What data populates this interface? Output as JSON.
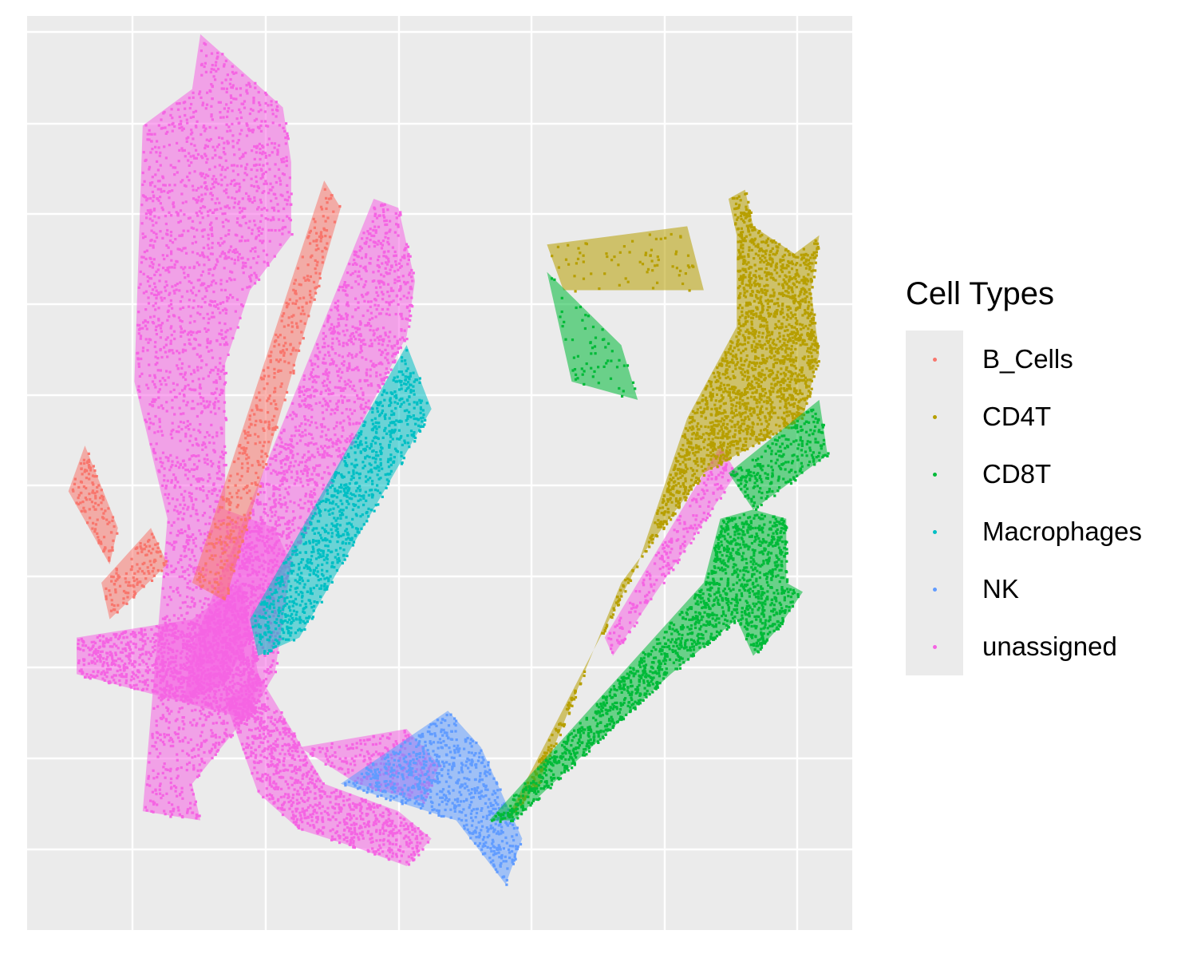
{
  "chart_data": {
    "type": "scatter",
    "title": "",
    "xlabel": "",
    "ylabel": "",
    "grid": true,
    "legend_position": "right",
    "legend": {
      "title": "Cell Types",
      "items": [
        {
          "label": "B_Cells",
          "color": "#F8766D"
        },
        {
          "label": "CD4T",
          "color": "#B79F00"
        },
        {
          "label": "CD8T",
          "color": "#00BA38"
        },
        {
          "label": "Macrophages",
          "color": "#00BFC4"
        },
        {
          "label": "NK",
          "color": "#619CFF"
        },
        {
          "label": "unassigned",
          "color": "#F564E3"
        }
      ]
    },
    "series": [
      {
        "name": "unassigned",
        "color": "#F564E3",
        "regions": [
          {
            "path": [
              [
                0.14,
                0.87
              ],
              [
                0.17,
                0.55
              ],
              [
                0.13,
                0.4
              ],
              [
                0.14,
                0.12
              ],
              [
                0.2,
                0.08
              ],
              [
                0.21,
                0.02
              ],
              [
                0.31,
                0.1
              ],
              [
                0.32,
                0.16
              ],
              [
                0.32,
                0.24
              ],
              [
                0.27,
                0.3
              ],
              [
                0.24,
                0.38
              ],
              [
                0.24,
                0.54
              ],
              [
                0.3,
                0.56
              ],
              [
                0.32,
                0.6
              ],
              [
                0.3,
                0.72
              ],
              [
                0.28,
                0.75
              ],
              [
                0.2,
                0.84
              ],
              [
                0.21,
                0.88
              ]
            ],
            "n": 2600
          },
          {
            "path": [
              [
                0.2,
                0.69
              ],
              [
                0.42,
                0.2
              ],
              [
                0.45,
                0.21
              ],
              [
                0.47,
                0.29
              ],
              [
                0.46,
                0.35
              ],
              [
                0.3,
                0.63
              ],
              [
                0.24,
                0.73
              ],
              [
                0.19,
                0.75
              ]
            ],
            "n": 1600
          },
          {
            "path": [
              [
                0.06,
                0.68
              ],
              [
                0.2,
                0.66
              ],
              [
                0.26,
                0.62
              ],
              [
                0.28,
                0.72
              ],
              [
                0.27,
                0.77
              ],
              [
                0.06,
                0.72
              ]
            ],
            "n": 1100
          },
          {
            "path": [
              [
                0.24,
                0.75
              ],
              [
                0.28,
                0.72
              ],
              [
                0.36,
                0.84
              ],
              [
                0.45,
                0.87
              ],
              [
                0.49,
                0.9
              ],
              [
                0.46,
                0.93
              ],
              [
                0.4,
                0.91
              ],
              [
                0.33,
                0.89
              ],
              [
                0.28,
                0.85
              ]
            ],
            "n": 900
          },
          {
            "path": [
              [
                0.33,
                0.8
              ],
              [
                0.46,
                0.78
              ],
              [
                0.5,
                0.82
              ],
              [
                0.48,
                0.86
              ],
              [
                0.4,
                0.84
              ]
            ],
            "n": 260
          },
          {
            "path": [
              [
                0.7,
                0.68
              ],
              [
                0.84,
                0.47
              ],
              [
                0.86,
                0.5
              ],
              [
                0.71,
                0.7
              ]
            ],
            "n": 220
          }
        ]
      },
      {
        "name": "B_Cells",
        "color": "#F8766D",
        "regions": [
          {
            "path": [
              [
                0.2,
                0.62
              ],
              [
                0.36,
                0.18
              ],
              [
                0.38,
                0.21
              ],
              [
                0.24,
                0.64
              ]
            ],
            "n": 420
          },
          {
            "path": [
              [
                0.05,
                0.52
              ],
              [
                0.07,
                0.47
              ],
              [
                0.11,
                0.56
              ],
              [
                0.1,
                0.6
              ]
            ],
            "n": 120
          },
          {
            "path": [
              [
                0.09,
                0.62
              ],
              [
                0.15,
                0.56
              ],
              [
                0.17,
                0.6
              ],
              [
                0.1,
                0.66
              ]
            ],
            "n": 120
          }
        ]
      },
      {
        "name": "Macrophages",
        "color": "#00BFC4",
        "regions": [
          {
            "path": [
              [
                0.27,
                0.66
              ],
              [
                0.46,
                0.36
              ],
              [
                0.49,
                0.43
              ],
              [
                0.33,
                0.68
              ],
              [
                0.28,
                0.7
              ]
            ],
            "n": 950
          }
        ]
      },
      {
        "name": "NK",
        "color": "#619CFF",
        "regions": [
          {
            "path": [
              [
                0.38,
                0.84
              ],
              [
                0.51,
                0.76
              ],
              [
                0.55,
                0.8
              ],
              [
                0.6,
                0.9
              ],
              [
                0.58,
                0.95
              ],
              [
                0.52,
                0.88
              ],
              [
                0.45,
                0.86
              ]
            ],
            "n": 700
          }
        ]
      },
      {
        "name": "CD4T",
        "color": "#B79F00",
        "regions": [
          {
            "path": [
              [
                0.58,
                0.88
              ],
              [
                0.74,
                0.6
              ],
              [
                0.8,
                0.44
              ],
              [
                0.86,
                0.34
              ],
              [
                0.86,
                0.24
              ],
              [
                0.85,
                0.2
              ],
              [
                0.87,
                0.19
              ],
              [
                0.88,
                0.23
              ],
              [
                0.93,
                0.26
              ],
              [
                0.96,
                0.24
              ],
              [
                0.95,
                0.3
              ],
              [
                0.96,
                0.37
              ],
              [
                0.94,
                0.44
              ],
              [
                0.82,
                0.5
              ],
              [
                0.72,
                0.62
              ],
              [
                0.62,
                0.84
              ]
            ],
            "n": 2200
          },
          {
            "path": [
              [
                0.63,
                0.25
              ],
              [
                0.8,
                0.23
              ],
              [
                0.82,
                0.3
              ],
              [
                0.65,
                0.3
              ]
            ],
            "n": 70
          }
        ]
      },
      {
        "name": "CD8T",
        "color": "#00BA38",
        "regions": [
          {
            "path": [
              [
                0.56,
                0.88
              ],
              [
                0.72,
                0.72
              ],
              [
                0.82,
                0.62
              ],
              [
                0.84,
                0.55
              ],
              [
                0.88,
                0.54
              ],
              [
                0.92,
                0.55
              ],
              [
                0.92,
                0.62
              ],
              [
                0.94,
                0.63
              ],
              [
                0.91,
                0.67
              ],
              [
                0.88,
                0.7
              ],
              [
                0.86,
                0.66
              ],
              [
                0.78,
                0.72
              ],
              [
                0.66,
                0.82
              ],
              [
                0.59,
                0.88
              ]
            ],
            "n": 1600
          },
          {
            "path": [
              [
                0.85,
                0.5
              ],
              [
                0.96,
                0.42
              ],
              [
                0.97,
                0.48
              ],
              [
                0.88,
                0.54
              ]
            ],
            "n": 260
          },
          {
            "path": [
              [
                0.63,
                0.28
              ],
              [
                0.72,
                0.36
              ],
              [
                0.74,
                0.42
              ],
              [
                0.66,
                0.4
              ]
            ],
            "n": 60
          }
        ]
      }
    ]
  }
}
